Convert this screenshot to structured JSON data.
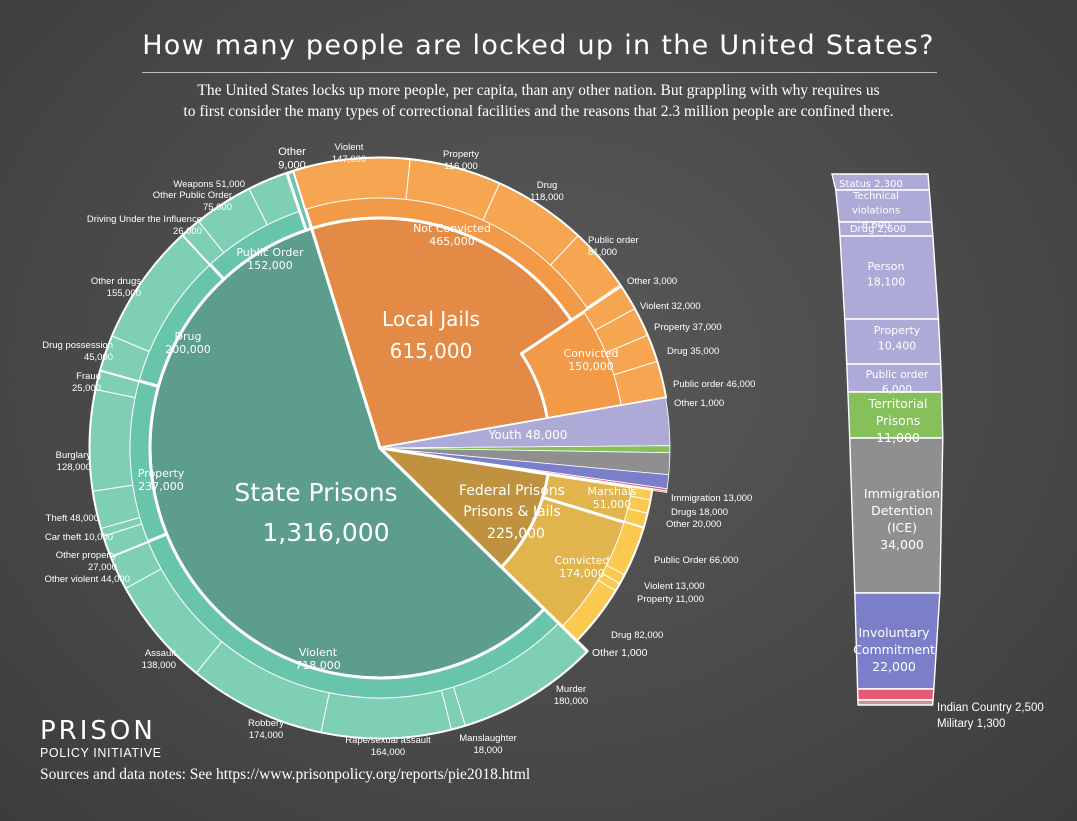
{
  "title": "How many people are locked up in the United States?",
  "subtitle": {
    "line1": "The United States locks up more people, per capita, than any other nation.  But grappling with why requires us",
    "line2": "to first consider the many types of correctional facilities and the reasons that 2.3 million people are confined there."
  },
  "logo": {
    "line1": "PRISON",
    "line2": "POLICY INITIATIVE"
  },
  "sources": "Sources and data notes: See https://www.prisonpolicy.org/reports/pie2018.html",
  "colors": {
    "state_inner": "#5c9e8b",
    "state_mid": "#68c4aa",
    "state_outer": "#7fcfb5",
    "jail_inner": "#e38b46",
    "jail_mid": "#f29a47",
    "jail_outer": "#f6a650",
    "fed_inner": "#bf923f",
    "fed_mid": "#e1b44d",
    "fed_outer": "#fbc950",
    "youth": "#aeaad8",
    "territorial": "#86c05b",
    "immigration": "#8f8f8f",
    "involuntary": "#7b7fc9",
    "indian_country": "#e55b76",
    "military": "#c99595"
  },
  "chart_data": {
    "type": "pie",
    "title": "How many people are locked up in the United States?",
    "main": [
      {
        "key": "state",
        "label": "State Prisons",
        "value_label": "1,316,000",
        "value": 1316000,
        "mid": [
          {
            "label": "Violent",
            "value_label": "718,000",
            "value": 718000,
            "outer": [
              {
                "label": "Murder",
                "value_label": "180,000",
                "value": 180000
              },
              {
                "label": "Manslaughter",
                "value_label": "18,000",
                "value": 18000
              },
              {
                "label": "Rape/sexual assault",
                "value_label": "164,000",
                "value": 164000
              },
              {
                "label": "Robbery",
                "value_label": "174,000",
                "value": 174000
              },
              {
                "label": "Assault",
                "value_label": "138,000",
                "value": 138000
              },
              {
                "label": "Other violent",
                "value_label": "44,000",
                "value": 44000
              }
            ]
          },
          {
            "label": "Property",
            "value_label": "237,000",
            "value": 237000,
            "outer": [
              {
                "label": "Other property",
                "value_label": "27,000",
                "value": 27000
              },
              {
                "label": "Car theft",
                "value_label": "10,000",
                "value": 10000
              },
              {
                "label": "Theft",
                "value_label": "48,000",
                "value": 48000
              },
              {
                "label": "Burglary",
                "value_label": "128,000",
                "value": 128000
              },
              {
                "label": "Fraud",
                "value_label": "25,000",
                "value": 25000
              }
            ]
          },
          {
            "label": "Drug",
            "value_label": "200,000",
            "value": 200000,
            "outer": [
              {
                "label": "Drug possession",
                "value_label": "45,000",
                "value": 45000
              },
              {
                "label": "Other drugs",
                "value_label": "155,000",
                "value": 155000
              }
            ]
          },
          {
            "label": "Public Order",
            "value_label": "152,000",
            "value": 152000,
            "outer": [
              {
                "label": "Driving Under the Influence",
                "value_label": "26,000",
                "value": 26000
              },
              {
                "label": "Other Public Order",
                "value_label": "75,000",
                "value": 75000
              },
              {
                "label": "Weapons",
                "value_label": "51,000",
                "value": 51000
              }
            ]
          },
          {
            "label": "Other",
            "value_label": "9,000",
            "value": 9000,
            "outer": []
          }
        ]
      },
      {
        "key": "jail",
        "label": "Local Jails",
        "value_label": "615,000",
        "value": 615000,
        "mid": [
          {
            "label": "Not Convicted",
            "value_label": "465,000",
            "value": 465000,
            "outer": [
              {
                "label": "Violent",
                "value_label": "147,000",
                "value": 147000
              },
              {
                "label": "Property",
                "value_label": "116,000",
                "value": 116000
              },
              {
                "label": "Drug",
                "value_label": "118,000",
                "value": 118000
              },
              {
                "label": "Public order",
                "value_label": "81,000",
                "value": 81000
              },
              {
                "label": "Other",
                "value_label": "3,000",
                "value": 3000
              }
            ]
          },
          {
            "label": "Convicted",
            "value_label": "150,000",
            "value": 150000,
            "outer": [
              {
                "label": "Violent",
                "value_label": "32,000",
                "value": 32000
              },
              {
                "label": "Property",
                "value_label": "37,000",
                "value": 37000
              },
              {
                "label": "Drug",
                "value_label": "35,000",
                "value": 35000
              },
              {
                "label": "Public order",
                "value_label": "46,000",
                "value": 46000
              },
              {
                "label": "Other",
                "value_label": "1,000",
                "value": 1000
              }
            ]
          }
        ]
      },
      {
        "key": "youth",
        "label": "Youth",
        "value_label": "48,000",
        "value": 48000,
        "mid": []
      },
      {
        "key": "territorial",
        "label": "Territorial Prisons",
        "value_label": "11,000",
        "value": 11000,
        "mid": []
      },
      {
        "key": "immigration",
        "label": "Immigration Detention (ICE)",
        "value_label": "34,000",
        "value": 34000,
        "mid": []
      },
      {
        "key": "involuntary",
        "label": "Involuntary Commitment",
        "value_label": "22,000",
        "value": 22000,
        "mid": []
      },
      {
        "key": "indian_country",
        "label": "Indian Country",
        "value_label": "2,500",
        "value": 2500,
        "mid": []
      },
      {
        "key": "military",
        "label": "Military",
        "value_label": "1,300",
        "value": 1300,
        "mid": []
      },
      {
        "key": "fed",
        "label": "Federal Prisons & Jails",
        "value_label": "225,000",
        "value": 225000,
        "mid": [
          {
            "label": "Marshals",
            "value_label": "51,000",
            "value": 51000,
            "outer": [
              {
                "label": "Immigration",
                "value_label": "13,000",
                "value": 13000
              },
              {
                "label": "Drugs",
                "value_label": "18,000",
                "value": 18000
              },
              {
                "label": "Other",
                "value_label": "20,000",
                "value": 20000
              }
            ]
          },
          {
            "label": "Convicted",
            "value_label": "174,000",
            "value": 174000,
            "outer": [
              {
                "label": "Public Order",
                "value_label": "66,000",
                "value": 66000
              },
              {
                "label": "Violent",
                "value_label": "13,000",
                "value": 13000
              },
              {
                "label": "Property",
                "value_label": "11,000",
                "value": 11000
              },
              {
                "label": "Drug",
                "value_label": "82,000",
                "value": 82000
              },
              {
                "label": "Other",
                "value_label": "1,000",
                "value": 1000
              }
            ]
          }
        ]
      }
    ],
    "side_bar": [
      {
        "key": "youth",
        "label": "Youth",
        "value": 48000,
        "segments": [
          {
            "label": "Status",
            "value_label": "2,300",
            "value": 2300
          },
          {
            "label": "Technical violations",
            "value_label": "8,600",
            "value": 8600
          },
          {
            "label": "Drug",
            "value_label": "2,600",
            "value": 2600
          },
          {
            "label": "Person",
            "value_label": "18,100",
            "value": 18100
          },
          {
            "label": "Property",
            "value_label": "10,400",
            "value": 10400
          },
          {
            "label": "Public order",
            "value_label": "6,000",
            "value": 6000
          }
        ]
      },
      {
        "key": "territorial",
        "label": "Territorial Prisons",
        "value_label": "11,000",
        "value": 11000
      },
      {
        "key": "immigration",
        "label": "Immigration Detention (ICE)",
        "value_label": "34,000",
        "value": 34000
      },
      {
        "key": "involuntary",
        "label": "Involuntary Commitment",
        "value_label": "22,000",
        "value": 22000
      },
      {
        "key": "indian_country",
        "label": "Indian Country",
        "value_label": "2,500",
        "value": 2500
      },
      {
        "key": "military",
        "label": "Military",
        "value_label": "1,300",
        "value": 1300
      }
    ]
  }
}
